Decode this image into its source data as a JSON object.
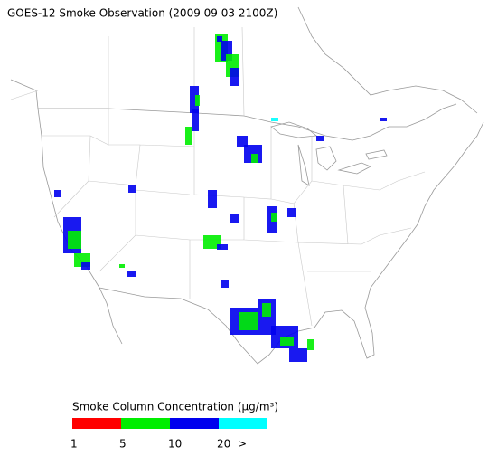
{
  "title": "GOES-12 Smoke Observation (2009 09 03  2100Z)",
  "legend": {
    "title": "Smoke Column Concentration (μg/m³)",
    "colors": [
      "#ff0000",
      "#00ee00",
      "#0000ee",
      "#00ffff"
    ],
    "labels": [
      "1",
      "5",
      "10",
      "20",
      ">"
    ]
  }
}
